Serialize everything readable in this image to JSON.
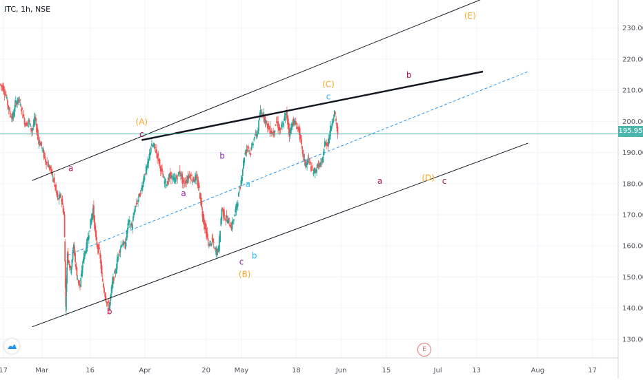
{
  "chart_data": {
    "type": "candlestick",
    "symbol": "ITC, 1h, NSE",
    "current_price": "195.95",
    "y_ticks": [
      "130.00",
      "140.00",
      "150.00",
      "160.00",
      "170.00",
      "180.00",
      "190.00",
      "200.00",
      "210.00",
      "220.00",
      "230.00"
    ],
    "ylim": [
      124,
      239
    ],
    "x_ticks": [
      {
        "label": "17",
        "t": 17
      },
      {
        "label": "Mar",
        "t": 29
      },
      {
        "label": "16",
        "t": 44
      },
      {
        "label": "Apr",
        "t": 61
      },
      {
        "label": "20",
        "t": 80
      },
      {
        "label": "May",
        "t": 91
      },
      {
        "label": "18",
        "t": 108
      },
      {
        "label": "Jun",
        "t": 122
      },
      {
        "label": "15",
        "t": 136
      },
      {
        "label": "Jul",
        "t": 152
      },
      {
        "label": "13",
        "t": 164
      },
      {
        "label": "Aug",
        "t": 183
      },
      {
        "label": "17",
        "t": 200
      }
    ],
    "xlim": [
      16,
      208
    ],
    "price_path": [
      [
        16,
        212
      ],
      [
        17,
        211
      ],
      [
        18,
        208
      ],
      [
        19,
        203
      ],
      [
        20,
        201
      ],
      [
        21,
        206
      ],
      [
        22,
        207
      ],
      [
        23,
        203
      ],
      [
        24,
        199
      ],
      [
        25,
        200
      ],
      [
        26,
        197
      ],
      [
        27,
        201
      ],
      [
        28,
        194
      ],
      [
        29,
        192
      ],
      [
        30,
        188
      ],
      [
        31,
        186
      ],
      [
        32,
        184
      ],
      [
        33,
        180
      ],
      [
        34,
        175
      ],
      [
        35,
        176
      ],
      [
        36,
        170
      ],
      [
        36.5,
        140
      ],
      [
        37,
        158
      ],
      [
        38,
        152
      ],
      [
        39,
        160
      ],
      [
        40,
        150
      ],
      [
        41,
        147
      ],
      [
        42,
        156
      ],
      [
        43,
        160
      ],
      [
        44,
        166
      ],
      [
        45,
        172
      ],
      [
        46,
        161
      ],
      [
        47,
        158
      ],
      [
        48,
        148
      ],
      [
        49,
        143
      ],
      [
        50,
        140
      ],
      [
        51,
        148
      ],
      [
        52,
        152
      ],
      [
        53,
        158
      ],
      [
        54,
        161
      ],
      [
        55,
        160
      ],
      [
        56,
        168
      ],
      [
        57,
        166
      ],
      [
        58,
        172
      ],
      [
        59,
        175
      ],
      [
        60,
        178
      ],
      [
        61,
        183
      ],
      [
        62,
        186
      ],
      [
        63,
        192
      ],
      [
        64,
        192
      ],
      [
        65,
        189
      ],
      [
        66,
        185
      ],
      [
        67,
        181
      ],
      [
        68,
        180
      ],
      [
        69,
        183
      ],
      [
        70,
        181
      ],
      [
        71,
        182
      ],
      [
        72,
        184
      ],
      [
        73,
        180
      ],
      [
        74,
        181
      ],
      [
        75,
        183
      ],
      [
        76,
        181
      ],
      [
        77,
        182
      ],
      [
        78,
        178
      ],
      [
        79,
        170
      ],
      [
        80,
        165
      ],
      [
        81,
        160
      ],
      [
        82,
        162
      ],
      [
        83,
        158
      ],
      [
        84,
        159
      ],
      [
        85,
        172
      ],
      [
        86,
        169
      ],
      [
        87,
        168
      ],
      [
        88,
        166
      ],
      [
        89,
        170
      ],
      [
        90,
        175
      ],
      [
        91,
        181
      ],
      [
        92,
        189
      ],
      [
        93,
        192
      ],
      [
        94,
        190
      ],
      [
        95,
        195
      ],
      [
        96,
        196
      ],
      [
        97,
        203
      ],
      [
        98,
        202
      ],
      [
        99,
        199
      ],
      [
        100,
        197
      ],
      [
        101,
        196
      ],
      [
        102,
        200
      ],
      [
        103,
        197
      ],
      [
        104,
        199
      ],
      [
        105,
        203
      ],
      [
        106,
        196
      ],
      [
        107,
        200
      ],
      [
        108,
        199
      ],
      [
        109,
        197
      ],
      [
        110,
        190
      ],
      [
        111,
        186
      ],
      [
        112,
        188
      ],
      [
        113,
        184
      ],
      [
        114,
        184
      ],
      [
        115,
        186
      ],
      [
        116,
        186
      ],
      [
        117,
        193
      ],
      [
        118,
        193
      ],
      [
        119,
        199
      ],
      [
        120,
        203
      ],
      [
        121,
        196
      ]
    ],
    "trendlines": [
      {
        "style": "solid",
        "width": 1,
        "points": [
          [
            26,
            181
          ],
          [
            177,
            244
          ]
        ]
      },
      {
        "style": "solid",
        "width": 1,
        "points": [
          [
            26,
            134
          ],
          [
            180,
            193
          ]
        ]
      },
      {
        "style": "solid",
        "width": 2.5,
        "points": [
          [
            60,
            194
          ],
          [
            166,
            216
          ]
        ]
      },
      {
        "style": "dashed",
        "width": 1,
        "points": [
          [
            37,
            157
          ],
          [
            180,
            216
          ]
        ]
      }
    ],
    "annotations": [
      {
        "text": "a",
        "t": 38,
        "p": 184,
        "color": "#ad1457"
      },
      {
        "text": "b",
        "t": 50,
        "p": 138,
        "color": "#ad1457"
      },
      {
        "text": "(A)",
        "t": 60,
        "p": 199,
        "color": "#f9a825"
      },
      {
        "text": "c",
        "t": 60,
        "p": 195,
        "color": "#ad1457"
      },
      {
        "text": "a",
        "t": 73,
        "p": 176,
        "color": "#8e24aa"
      },
      {
        "text": "b",
        "t": 85,
        "p": 188,
        "color": "#8e24aa"
      },
      {
        "text": "c",
        "t": 91,
        "p": 154,
        "color": "#8e24aa"
      },
      {
        "text": "(B)",
        "t": 92,
        "p": 150,
        "color": "#f9a825"
      },
      {
        "text": "a",
        "t": 93,
        "p": 179,
        "color": "#29b6f6"
      },
      {
        "text": "b",
        "t": 95,
        "p": 156,
        "color": "#29b6f6"
      },
      {
        "text": "(C)",
        "t": 118,
        "p": 211,
        "color": "#f9a825"
      },
      {
        "text": "c",
        "t": 118,
        "p": 207,
        "color": "#29b6f6"
      },
      {
        "text": "a",
        "t": 134,
        "p": 180,
        "color": "#ad1457"
      },
      {
        "text": "b",
        "t": 143,
        "p": 214,
        "color": "#ad1457"
      },
      {
        "text": "(D)",
        "t": 149,
        "p": 181,
        "color": "#f9a825"
      },
      {
        "text": "c",
        "t": 154,
        "p": 180,
        "color": "#ad1457"
      },
      {
        "text": "(E)",
        "t": 162,
        "p": 233,
        "color": "#f9a825"
      }
    ],
    "event_marker": "E",
    "colors": {
      "up": "#26a69a",
      "down": "#ef5350",
      "price_line": "#4db6ac",
      "dashed": "#2196f3",
      "grid": "#f0f3fa",
      "axis_text": "#131722"
    }
  }
}
